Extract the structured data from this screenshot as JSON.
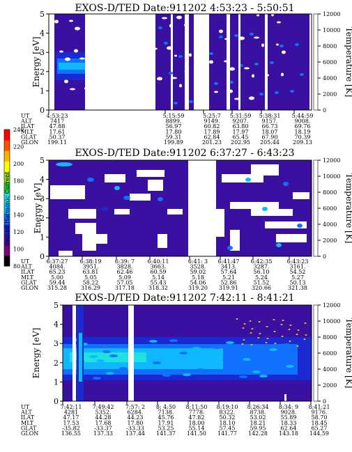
{
  "colorbar": {
    "label": "Second Harmonic Current",
    "ticks": [
      "80",
      "100",
      "120",
      "140",
      "160",
      "180",
      "200",
      "220",
      "240"
    ],
    "colors": [
      "#000000",
      "#7a007a",
      "#3a10a0",
      "#1a2ad0",
      "#1070ff",
      "#10b8ff",
      "#20e0e0",
      "#20d040",
      "#a0e020",
      "#ffff00",
      "#ffb000",
      "#ff5000",
      "#ff0000"
    ]
  },
  "chart_data": [
    {
      "type": "heatmap",
      "title": "EXOS-D/TED   Date:911202  4:53:23 - 5:50:51",
      "ylabel": "Energy [eV]",
      "y2label": "Temperature [K]",
      "ylim": [
        0,
        5
      ],
      "y2lim": [
        0,
        12000
      ],
      "yticks": [
        "0",
        "1",
        "2",
        "3",
        "4",
        "5"
      ],
      "y2ticks": [
        "0",
        "2000",
        "4000",
        "6000",
        "8000",
        "10000",
        "12000"
      ],
      "table": {
        "labels": [
          "UT",
          "ALT",
          "ILAT",
          "MLT",
          "GLAT",
          "GLON"
        ],
        "columns": [
          [
            "4:53:23",
            "7417",
            "47.88",
            "17.61",
            "50.37",
            "199.11"
          ],
          [
            "5:15:59",
            "8899.",
            "56.97",
            "17.80",
            "59.31",
            "199.89"
          ],
          [
            "5:25:7",
            "9149.",
            "60.82",
            "17.89",
            "62.84",
            "201.23"
          ],
          [
            "5:31:59",
            "9207.",
            "63.80",
            "17.97",
            "65.45",
            "202.95"
          ],
          [
            "5:38:31",
            "9157.",
            "66.73",
            "18.07",
            "67.90",
            "205.44"
          ],
          [
            "5:44:59",
            "9008.",
            "69.76",
            "18.19",
            "70.39",
            "209.13"
          ]
        ]
      }
    },
    {
      "type": "heatmap",
      "title": "EXOS-D/TED   Date:911202  6:37:27 - 6:43:23",
      "ylabel": "Energy [eV]",
      "y2label": "Temperature [K]",
      "ylim": [
        0,
        5
      ],
      "y2lim": [
        0,
        12000
      ],
      "yticks": [
        "0",
        "1",
        "2",
        "3",
        "4",
        "5"
      ],
      "y2ticks": [
        "0",
        "2000",
        "4000",
        "6000",
        "8000",
        "10000",
        "12000"
      ],
      "table": {
        "labels": [
          "UT",
          "ALT",
          "ILAT",
          "MLT",
          "GLAT",
          "GLON"
        ],
        "columns": [
          [
            "6:37:27",
            "4084.",
            "65.23",
            "5.00",
            "59.44",
            "315.28"
          ],
          [
            "6:38:19",
            "3951.",
            "63.81",
            "5.05",
            "58.22",
            "316.29"
          ],
          [
            "6:39: 7",
            "3828.",
            "62.46",
            "5.09",
            "57.05",
            "317.18"
          ],
          [
            "6:40:11",
            "3663.",
            "60.59",
            "5.14",
            "55.43",
            "318.32"
          ],
          [
            "6:41: 3",
            "3528.",
            "59.02",
            "5.18",
            "54.06",
            "319.20"
          ],
          [
            "6:41:47",
            "3413.",
            "57.64",
            "5.21",
            "52.86",
            "319.91"
          ],
          [
            "6:42:35",
            "3287.",
            "56.10",
            "5.24",
            "51.52",
            "320.66"
          ],
          [
            "6:43:23",
            "3161.",
            "54.52",
            "5.27",
            "50.13",
            "321.38"
          ]
        ]
      }
    },
    {
      "type": "heatmap",
      "title": "EXOS-D/TED   Date:911202  7:42:11 - 8:41:21",
      "ylabel": "Energy [eV]",
      "y2label": "Temperature [K]",
      "ylim": [
        0,
        5
      ],
      "y2lim": [
        0,
        12000
      ],
      "yticks": [
        "0",
        "1",
        "2",
        "3",
        "4",
        "5"
      ],
      "y2ticks": [
        "0",
        "2000",
        "4000",
        "6000",
        "8000",
        "10000",
        "12000"
      ],
      "table": {
        "labels": [
          "UT",
          "ALT",
          "ILAT",
          "MLT",
          "GLAT",
          "GLON"
        ],
        "columns": [
          [
            "7:42:11",
            "4281",
            "47.17",
            "17.53",
            "-35.82",
            "136.55"
          ],
          [
            "7:49:42",
            "5352.",
            "44.28",
            "17.68",
            "-33.37",
            "137.33"
          ],
          [
            "7:57: 2",
            "6284.",
            "44.23",
            "17.80",
            "-33.33",
            "137.44"
          ],
          [
            "8: 4:50",
            "7138.",
            "45.76",
            "17.91",
            "53.25",
            "141.37"
          ],
          [
            "8:11:50",
            "7778.",
            "47.82",
            "18.00",
            "55.14",
            "141.50"
          ],
          [
            "8:19:10",
            "8322.",
            "50.32",
            "18.10",
            "57.45",
            "141.77"
          ],
          [
            "8:26:34",
            "8738.",
            "53.02",
            "18.21",
            "59.95",
            "142.28"
          ],
          [
            "8:34: 9",
            "9028.",
            "55.89",
            "18.33",
            "62.64",
            "143.18"
          ],
          [
            "8:41:21",
            "9176.",
            "58.70",
            "18.45",
            "65.27",
            "144.59"
          ]
        ]
      }
    }
  ]
}
